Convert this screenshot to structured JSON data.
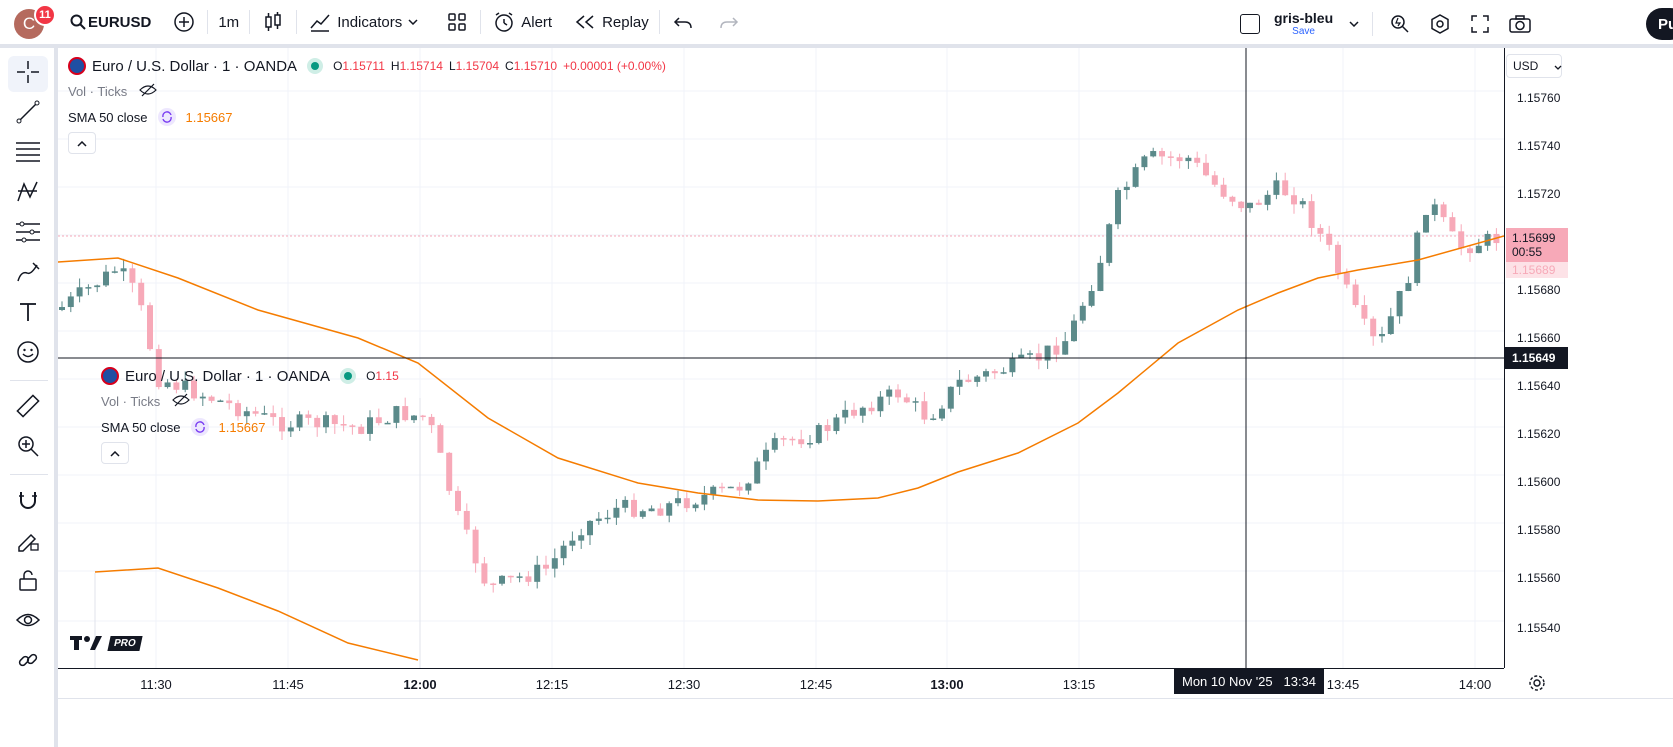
{
  "toolbar": {
    "avatar_letter": "C",
    "notification_count": "11",
    "symbol": "EURUSD",
    "interval": "1m",
    "indicators_label": "Indicators",
    "alert_label": "Alert",
    "replay_label": "Replay",
    "layout_name": "gris-bleu",
    "save_label": "Save",
    "publish_label": "Pu"
  },
  "legend": {
    "title": "Euro / U.S. Dollar · 1 · OANDA",
    "o_label": "O",
    "o_value": "1.15711",
    "h_label": "H",
    "h_value": "1.15714",
    "l_label": "L",
    "l_value": "1.15704",
    "c_label": "C",
    "c_value": "1.15710",
    "change": "+0.00001 (+0.00%)",
    "vol": "Vol · Ticks",
    "sma": "SMA 50 close",
    "sma_value": "1.15667"
  },
  "ghost_legend": {
    "title": "Euro / U.S. Dollar · 1 · OANDA",
    "o_label": "O",
    "o_value": "1.15",
    "vol": "Vol · Ticks",
    "sma": "SMA 50 close",
    "sma_value": "1.15667"
  },
  "price_axis": {
    "currency": "USD",
    "labels": [
      "1.15760",
      "1.15740",
      "1.15720",
      "1.15680",
      "1.15660",
      "1.15640",
      "1.15620",
      "1.15600",
      "1.15580",
      "1.15560",
      "1.15540"
    ],
    "last_price": "1.15699",
    "countdown": "00:55",
    "sma_tag": "1.15689",
    "crosshair_price": "1.15649"
  },
  "time_axis": {
    "labels": [
      "11:30",
      "11:45",
      "12:00",
      "12:15",
      "12:30",
      "12:45",
      "13:00",
      "13:15",
      "13:45",
      "14:00"
    ],
    "crosshair_time": "Mon 10 Nov '25   13:34"
  },
  "logo_text": "PRO",
  "colors": {
    "up": "#5b8a8a",
    "down": "#f7a9b8",
    "sma": "#f57c00",
    "red_text": "#f23645",
    "last_price_bg": "#f7a9b8"
  },
  "chart_data": {
    "type": "candlestick",
    "sma_period": 50,
    "ylim": [
      1.1553,
      1.1577
    ]
  }
}
